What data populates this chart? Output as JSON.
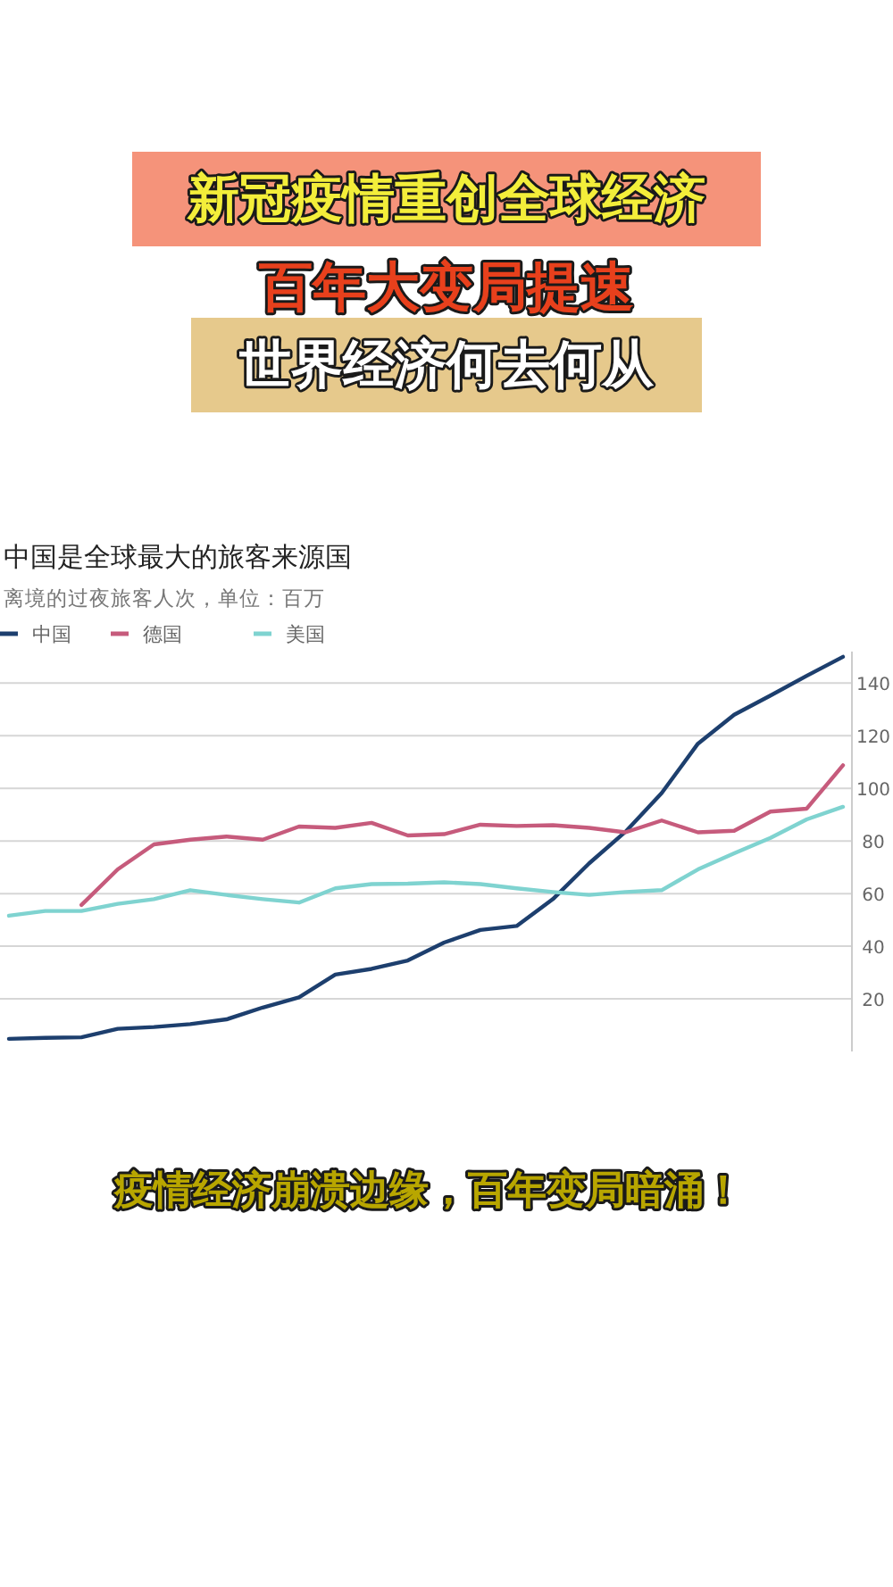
{
  "chart_data": {
    "type": "line",
    "title": "中国是全球最大的旅客来源国",
    "subtitle": "离境的过夜旅客人次，单位：百万",
    "annotations": [
      "新冠疫情重创全球经济",
      "百年大变局提速",
      "世界经济何去何从",
      "疫情经济崩溃边缘，百年变局暗涌！"
    ],
    "categories": [
      null,
      null,
      null,
      null,
      null,
      null,
      null,
      null,
      null,
      null,
      null,
      null,
      null,
      null,
      null,
      null,
      null,
      null,
      null,
      null,
      null,
      null,
      null,
      null
    ],
    "series": [
      {
        "name": "中国",
        "color": "#1d3f6e",
        "values": [
          4.8,
          5.2,
          5.4,
          8.6,
          9.3,
          10.4,
          12.2,
          16.7,
          20.6,
          29.2,
          31.4,
          34.6,
          41.4,
          46.2,
          47.7,
          57.9,
          71.5,
          83.5,
          98.2,
          117,
          128,
          135.3,
          142.8,
          150
        ]
      },
      {
        "name": "德国",
        "color": "#c65b7c",
        "values": [
          null,
          null,
          55.7,
          69.2,
          78.7,
          80.5,
          81.7,
          80.5,
          85.5,
          85,
          86.9,
          82.1,
          82.6,
          86.2,
          85.7,
          86,
          85,
          83.3,
          87.8,
          83.3,
          83.9,
          91.2,
          92.3,
          108.8
        ]
      },
      {
        "name": "美国",
        "color": "#7fd3d0",
        "values": [
          51.6,
          53.4,
          53.4,
          56.1,
          57.9,
          61.3,
          59.5,
          57.9,
          56.6,
          62,
          63.6,
          63.8,
          64.3,
          63.6,
          62,
          60.6,
          59.5,
          60.6,
          61.3,
          69.2,
          75.3,
          81.2,
          88.2,
          93
        ]
      }
    ],
    "ylim": [
      0,
      152
    ],
    "yticks": [
      20,
      40,
      60,
      80,
      100,
      120,
      140
    ],
    "grid": "y",
    "legend": "top left",
    "tick_labels": "y",
    "marker": "none",
    "line_style": "solid"
  }
}
